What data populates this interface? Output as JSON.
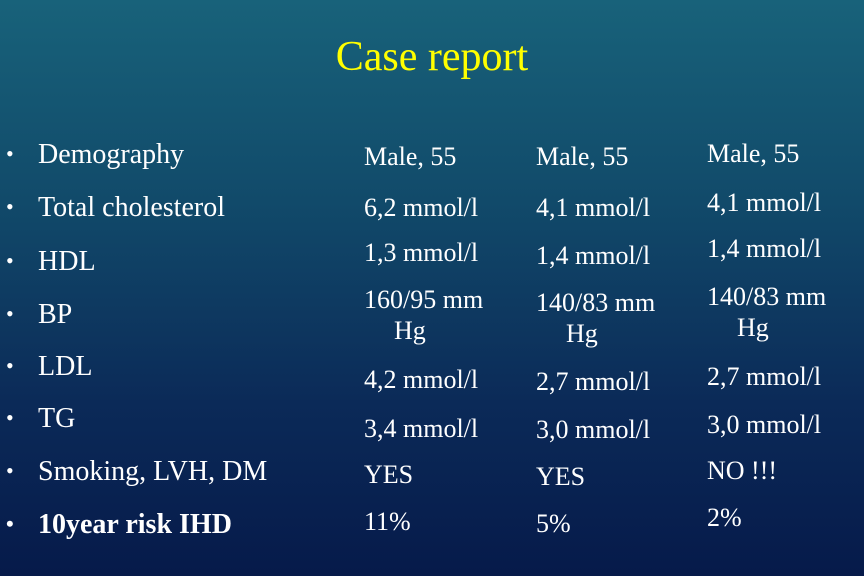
{
  "title": "Case report",
  "bullet": "•",
  "rows": [
    {
      "label": "Demography",
      "bold": false,
      "col1": "Male, 55",
      "col2": "Male, 55",
      "col3": "Male, 55"
    },
    {
      "label": "Total cholesterol",
      "bold": false,
      "col1": "6,2 mmol/l",
      "col2": "4,1 mmol/l",
      "col3": "4,1 mmol/l"
    },
    {
      "label": "HDL",
      "bold": false,
      "col1": "1,3 mmol/l",
      "col2": "1,4 mmol/l",
      "col3": "1,4 mmol/l"
    },
    {
      "label": "BP",
      "bold": false,
      "col1_line1": "160/95 mm",
      "col1_line2": "Hg",
      "col2_line1": "140/83 mm",
      "col2_line2": "Hg",
      "col3_line1": "140/83 mm",
      "col3_line2": "Hg"
    },
    {
      "label": "LDL",
      "bold": false,
      "col1": "4,2 mmol/l",
      "col2": "2,7 mmol/l",
      "col3": "2,7 mmol/l"
    },
    {
      "label": "TG",
      "bold": false,
      "col1": "3,4 mmol/l",
      "col2": "3,0 mmol/l",
      "col3": "3,0 mmol/l"
    },
    {
      "label": "Smoking, LVH, DM",
      "bold": false,
      "col1": "YES",
      "col2": "YES",
      "col3": "NO !!!"
    },
    {
      "label": "10year risk IHD",
      "bold": true,
      "col1": "11%",
      "col2": "5%",
      "col3": "2%"
    }
  ]
}
